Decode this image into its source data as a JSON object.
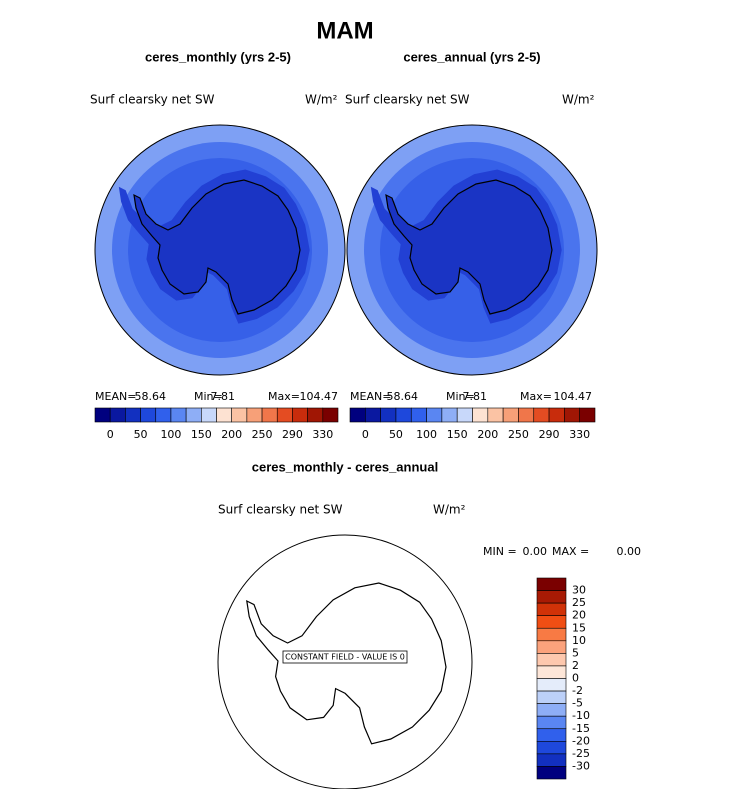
{
  "header": {
    "title": "MAM"
  },
  "panels": [
    {
      "title": "ceres_monthly (yrs 2-5)",
      "variable": "Surf clearsky net SW",
      "units": "W/m²",
      "stats": [
        "MEAN=",
        "58.64",
        "Min=",
        "7.81",
        "Max=",
        "104.47"
      ]
    },
    {
      "title": "ceres_annual (yrs 2-5)",
      "variable": "Surf clearsky net SW",
      "units": "W/m²",
      "stats": [
        "MEAN=",
        "58.64",
        "Min=",
        "7.81",
        "Max=",
        "104.47"
      ]
    },
    {
      "title": "ceres_monthly - ceres_annual",
      "variable": "Surf clearsky net SW",
      "units": "W/m²",
      "stats": [
        "MIN =",
        "0.00",
        "MAX =",
        "0.00"
      ],
      "annotation": "CONSTANT FIELD - VALUE IS 0"
    }
  ],
  "colorbar_main": {
    "labels": [
      0,
      50,
      100,
      150,
      200,
      250,
      290,
      330
    ],
    "colors": [
      "#00007f",
      "#0a18a0",
      "#1230c0",
      "#1e48dc",
      "#3060ec",
      "#5a86f2",
      "#8eaef6",
      "#c8d8fa",
      "#fde2d2",
      "#fbc3a4",
      "#f7a078",
      "#f0764a",
      "#e44c22",
      "#c82c0c",
      "#a01604",
      "#7a0000"
    ]
  },
  "colorbar_diff": {
    "labels": [
      30,
      25,
      20,
      15,
      10,
      5,
      2,
      0,
      -2,
      -5,
      -10,
      -15,
      -20,
      -25,
      -30
    ],
    "colors": [
      "#7a0000",
      "#a81a04",
      "#d03208",
      "#f04e14",
      "#f87a44",
      "#fba27c",
      "#fdc8ae",
      "#fde6d8",
      "#e4ecfa",
      "#bcd0f8",
      "#8eaef6",
      "#5a86f2",
      "#3060ec",
      "#1e48dc",
      "#1230c0",
      "#00007f"
    ]
  }
}
